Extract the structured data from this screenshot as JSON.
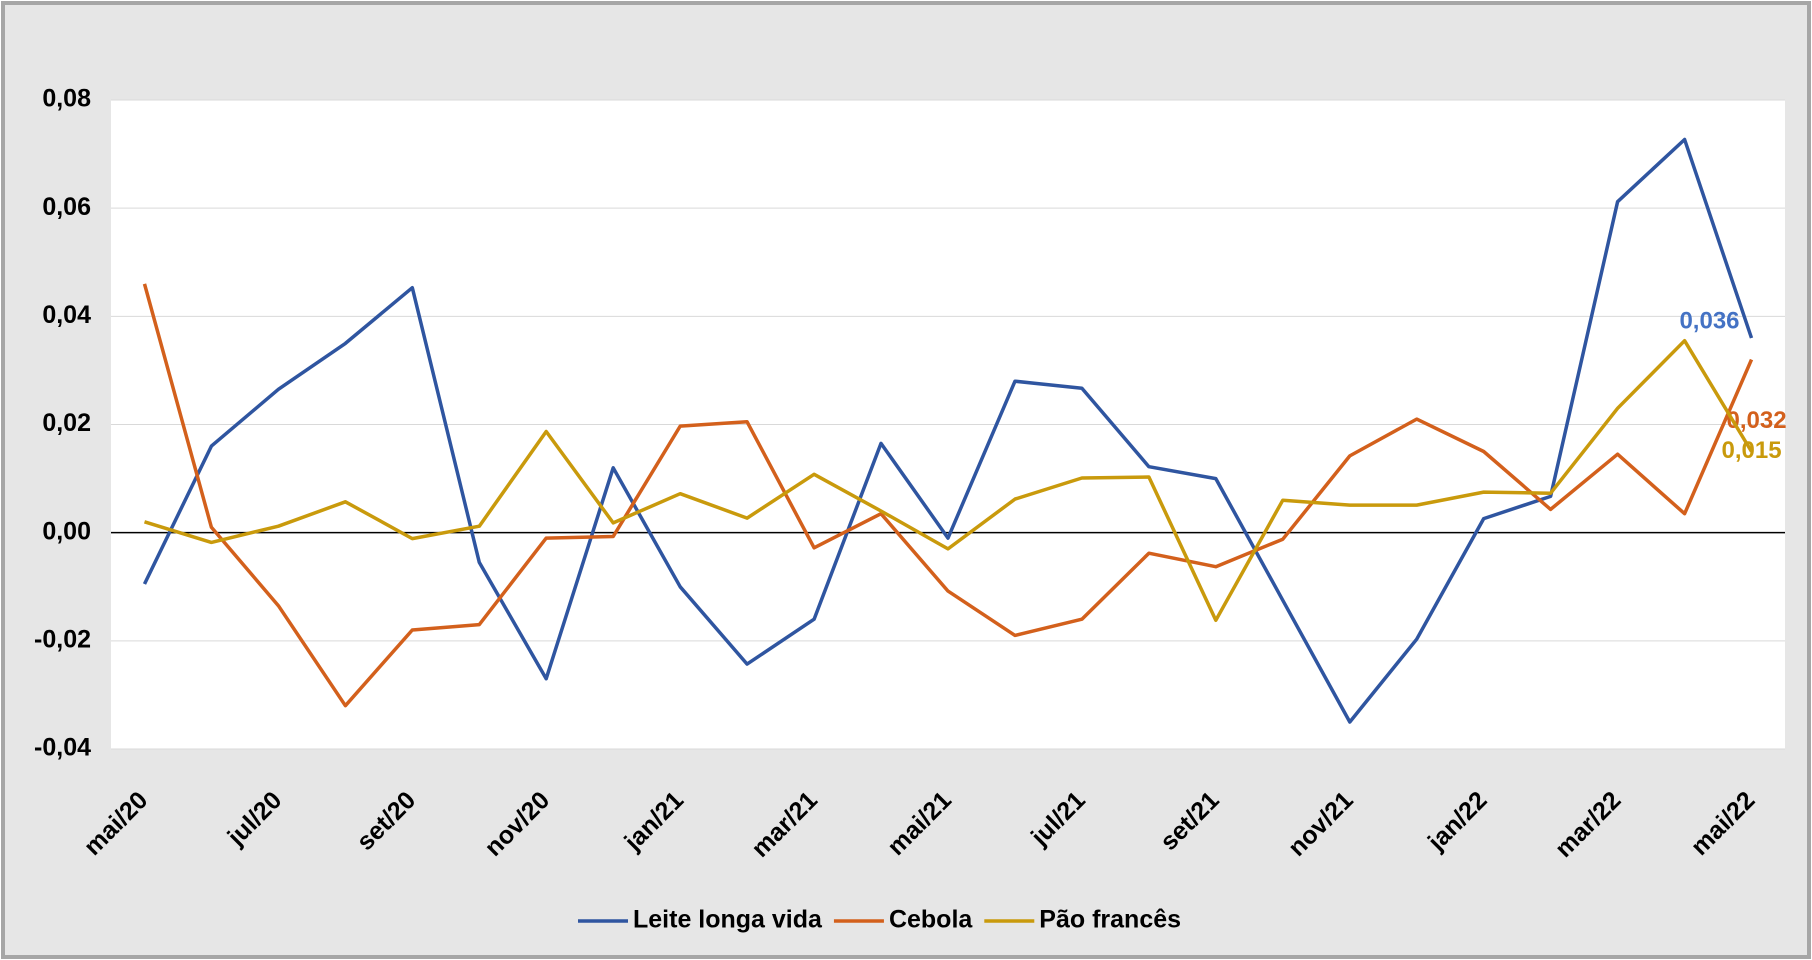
{
  "chart_data": {
    "type": "line",
    "categories": [
      "mai/20",
      null,
      "jul/20",
      null,
      "set/20",
      null,
      "nov/20",
      null,
      "jan/21",
      null,
      "mar/21",
      null,
      "mai/21",
      null,
      "jul/21",
      null,
      "set/21",
      null,
      "nov/21",
      null,
      "jan/22",
      null,
      "mar/22",
      null,
      "mai/22"
    ],
    "series": [
      {
        "name": "Leite longa vida",
        "color": "#2f55a0",
        "values": [
          -0.0095,
          0.016,
          0.0265,
          0.035,
          0.0453,
          -0.0055,
          -0.027,
          0.012,
          -0.01,
          -0.0243,
          -0.016,
          0.0165,
          -0.001,
          0.028,
          0.0267,
          0.0122,
          0.01,
          -0.0125,
          -0.035,
          -0.0197,
          0.0026,
          0.0067,
          0.0612,
          0.0727,
          0.036
        ],
        "value_labels": [
          null,
          null,
          null,
          null,
          null,
          null,
          null,
          null,
          null,
          null,
          null,
          null,
          null,
          null,
          null,
          null,
          null,
          null,
          null,
          null,
          null,
          null,
          null,
          null,
          "0,036"
        ],
        "label_color": "#4472c4"
      },
      {
        "name": "Cebola",
        "color": "#d3601c",
        "values": [
          0.046,
          0.001,
          -0.0135,
          -0.032,
          -0.018,
          -0.017,
          -0.001,
          -0.0007,
          0.0197,
          0.0205,
          -0.0028,
          0.0035,
          -0.0108,
          -0.019,
          -0.016,
          -0.0038,
          -0.0063,
          -0.0012,
          0.0142,
          0.021,
          0.015,
          0.0043,
          0.0145,
          0.0035,
          0.032
        ],
        "value_labels": [
          null,
          null,
          null,
          null,
          null,
          null,
          null,
          null,
          null,
          null,
          null,
          null,
          null,
          null,
          null,
          null,
          null,
          null,
          null,
          null,
          null,
          null,
          null,
          null,
          "0,032"
        ],
        "label_color": "#d3601c"
      },
      {
        "name": "Pão francês",
        "color": "#c99a0c",
        "values": [
          0.002,
          -0.0018,
          0.0012,
          0.0057,
          -0.0011,
          0.0012,
          0.0187,
          0.0018,
          0.0072,
          0.0027,
          0.0108,
          0.004,
          -0.003,
          0.0062,
          0.0101,
          0.0103,
          -0.0162,
          0.006,
          0.0051,
          0.0051,
          0.0075,
          0.0073,
          0.023,
          0.0355,
          0.015
        ],
        "value_labels": [
          null,
          null,
          null,
          null,
          null,
          null,
          null,
          null,
          null,
          null,
          null,
          null,
          null,
          null,
          null,
          null,
          null,
          null,
          null,
          null,
          null,
          null,
          null,
          null,
          "0,015"
        ],
        "label_color": "#c99a0c"
      }
    ],
    "ylim": [
      -0.04,
      0.08
    ],
    "yticks": [
      {
        "value": -0.04,
        "label": "-0,04"
      },
      {
        "value": -0.02,
        "label": "-0,02"
      },
      {
        "value": 0,
        "label": "0,00"
      },
      {
        "value": 0.02,
        "label": "0,02"
      },
      {
        "value": 0.04,
        "label": "0,04"
      },
      {
        "value": 0.06,
        "label": "0,06"
      },
      {
        "value": 0.08,
        "label": "0,08"
      }
    ],
    "grid": true,
    "legend": "bottom"
  }
}
